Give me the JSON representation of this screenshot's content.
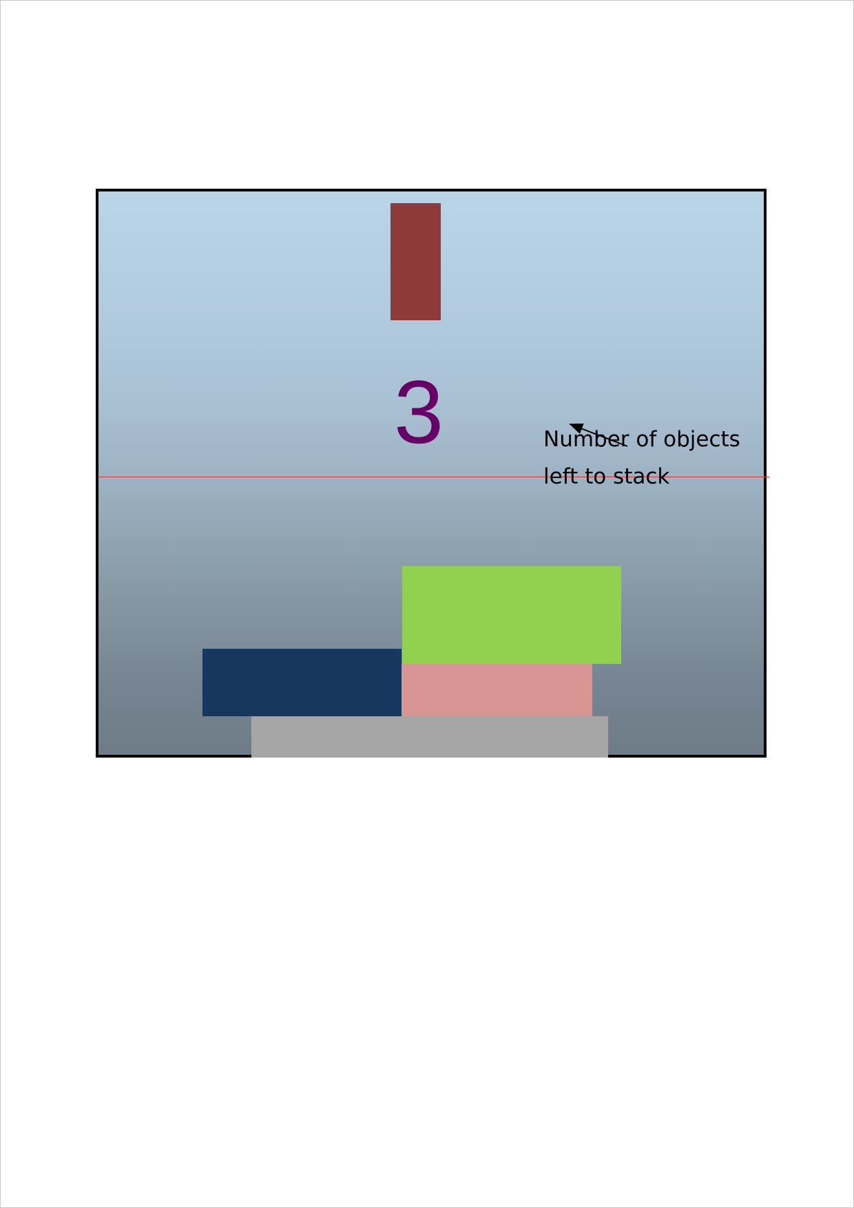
{
  "game": {
    "objects_left": "3",
    "annotation": "Number of objects\nleft to stack",
    "colors": {
      "sky_top": "#b9d5e7",
      "sky_bottom": "#6d7c87",
      "falling_block": "#8f3a3a",
      "counter": "#660066",
      "limit_line": "#e03030",
      "green_block": "#92d050",
      "pink_block": "#d99594",
      "navy_block": "#17375e",
      "base_platform": "#a6a6a6"
    }
  }
}
